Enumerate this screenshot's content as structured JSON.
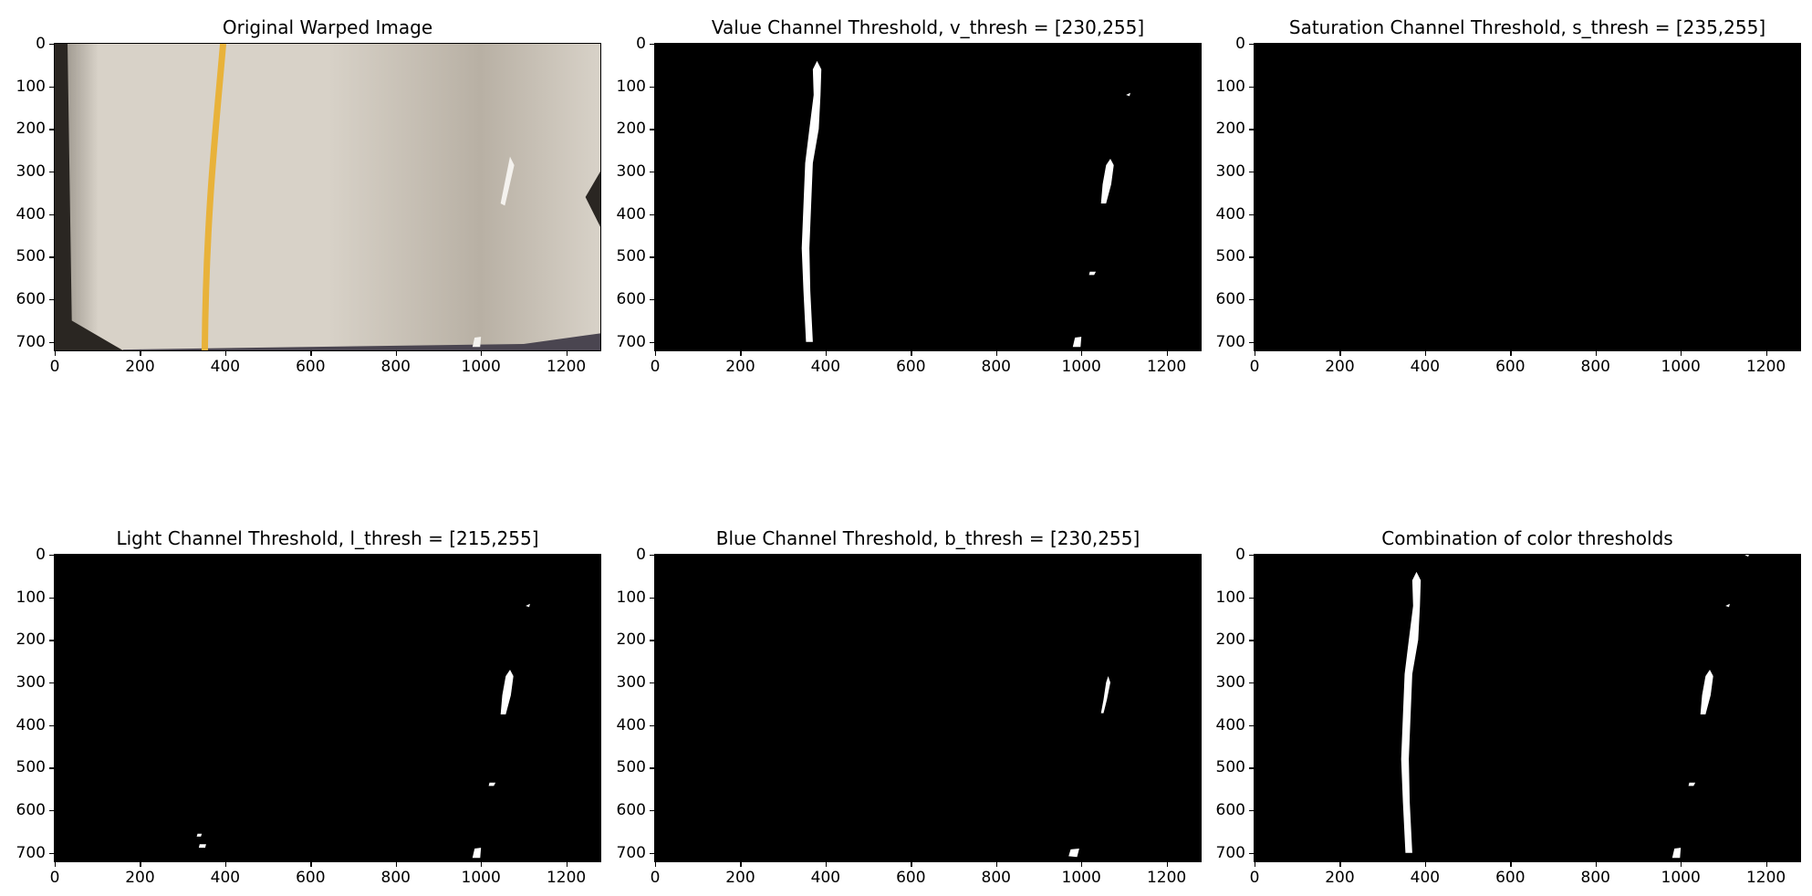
{
  "chart_data": [
    {
      "type": "image",
      "title": "Original Warped Image",
      "image": "road",
      "xlim": [
        0,
        1280
      ],
      "ylim": [
        0,
        720
      ],
      "x_ticks": [
        "0",
        "200",
        "400",
        "600",
        "800",
        "1000",
        "1200"
      ],
      "y_ticks": [
        "0",
        "100",
        "200",
        "300",
        "400",
        "500",
        "600",
        "700"
      ]
    },
    {
      "type": "image",
      "title": "Value Channel Threshold, v_thresh = [230,255]",
      "image": "binary",
      "xlim": [
        0,
        1280
      ],
      "ylim": [
        0,
        720
      ],
      "x_ticks": [
        "0",
        "200",
        "400",
        "600",
        "800",
        "1000",
        "1200"
      ],
      "y_ticks": [
        "0",
        "100",
        "200",
        "300",
        "400",
        "500",
        "600",
        "700"
      ],
      "blobs": [
        {
          "points": [
            [
              380,
              40
            ],
            [
              390,
              60
            ],
            [
              388,
              120
            ],
            [
              384,
              200
            ],
            [
              370,
              280
            ],
            [
              366,
              380
            ],
            [
              362,
              480
            ],
            [
              364,
              580
            ],
            [
              370,
              700
            ],
            [
              354,
              700
            ],
            [
              348,
              580
            ],
            [
              344,
              480
            ],
            [
              348,
              380
            ],
            [
              352,
              280
            ],
            [
              362,
              200
            ],
            [
              372,
              120
            ],
            [
              370,
              60
            ]
          ]
        },
        {
          "points": [
            [
              1068,
              270
            ],
            [
              1076,
              285
            ],
            [
              1070,
              330
            ],
            [
              1058,
              375
            ],
            [
              1046,
              375
            ],
            [
              1050,
              330
            ],
            [
              1058,
              285
            ]
          ]
        },
        {
          "points": [
            [
              1020,
              535
            ],
            [
              1034,
              535
            ],
            [
              1030,
              543
            ],
            [
              1018,
              543
            ]
          ]
        },
        {
          "points": [
            [
              985,
              690
            ],
            [
              1000,
              688
            ],
            [
              998,
              712
            ],
            [
              980,
              712
            ]
          ]
        },
        {
          "points": [
            [
              1105,
              120
            ],
            [
              1115,
              115
            ],
            [
              1113,
              123
            ]
          ]
        }
      ]
    },
    {
      "type": "image",
      "title": "Saturation Channel Threshold, s_thresh = [235,255]",
      "image": "binary",
      "xlim": [
        0,
        1280
      ],
      "ylim": [
        0,
        720
      ],
      "x_ticks": [
        "0",
        "200",
        "400",
        "600",
        "800",
        "1000",
        "1200"
      ],
      "y_ticks": [
        "0",
        "100",
        "200",
        "300",
        "400",
        "500",
        "600",
        "700"
      ],
      "blobs": []
    },
    {
      "type": "image",
      "title": "Light Channel Threshold, l_thresh = [215,255]",
      "image": "binary",
      "xlim": [
        0,
        1280
      ],
      "ylim": [
        0,
        720
      ],
      "x_ticks": [
        "0",
        "200",
        "400",
        "600",
        "800",
        "1000",
        "1200"
      ],
      "y_ticks": [
        "0",
        "100",
        "200",
        "300",
        "400",
        "500",
        "600",
        "700"
      ],
      "blobs": [
        {
          "points": [
            [
              1068,
              270
            ],
            [
              1076,
              285
            ],
            [
              1070,
              330
            ],
            [
              1058,
              375
            ],
            [
              1046,
              375
            ],
            [
              1050,
              330
            ],
            [
              1058,
              285
            ]
          ]
        },
        {
          "points": [
            [
              1020,
              535
            ],
            [
              1034,
              535
            ],
            [
              1030,
              543
            ],
            [
              1018,
              543
            ]
          ]
        },
        {
          "points": [
            [
              985,
              690
            ],
            [
              1000,
              688
            ],
            [
              998,
              712
            ],
            [
              980,
              712
            ]
          ]
        },
        {
          "points": [
            [
              1105,
              120
            ],
            [
              1115,
              115
            ],
            [
              1113,
              123
            ]
          ]
        },
        {
          "points": [
            [
              335,
              655
            ],
            [
              345,
              655
            ],
            [
              343,
              662
            ],
            [
              333,
              662
            ]
          ]
        },
        {
          "points": [
            [
              340,
              680
            ],
            [
              355,
              680
            ],
            [
              353,
              688
            ],
            [
              338,
              688
            ]
          ]
        }
      ]
    },
    {
      "type": "image",
      "title": "Blue Channel Threshold, b_thresh = [230,255]",
      "image": "binary",
      "xlim": [
        0,
        1280
      ],
      "ylim": [
        0,
        720
      ],
      "x_ticks": [
        "0",
        "200",
        "400",
        "600",
        "800",
        "1000",
        "1200"
      ],
      "y_ticks": [
        "0",
        "100",
        "200",
        "300",
        "400",
        "500",
        "600",
        "700"
      ],
      "blobs": [
        {
          "points": [
            [
              1063,
              285
            ],
            [
              1068,
              300
            ],
            [
              1060,
              340
            ],
            [
              1052,
              372
            ],
            [
              1046,
              372
            ],
            [
              1052,
              340
            ],
            [
              1058,
              300
            ]
          ]
        },
        {
          "points": [
            [
              975,
              692
            ],
            [
              995,
              690
            ],
            [
              990,
              710
            ],
            [
              970,
              708
            ]
          ]
        }
      ]
    },
    {
      "type": "image",
      "title": "Combination of color thresholds",
      "image": "binary",
      "xlim": [
        0,
        1280
      ],
      "ylim": [
        0,
        720
      ],
      "x_ticks": [
        "0",
        "200",
        "400",
        "600",
        "800",
        "1000",
        "1200"
      ],
      "y_ticks": [
        "0",
        "100",
        "200",
        "300",
        "400",
        "500",
        "600",
        "700"
      ],
      "blobs": [
        {
          "points": [
            [
              380,
              40
            ],
            [
              390,
              60
            ],
            [
              388,
              120
            ],
            [
              384,
              200
            ],
            [
              370,
              280
            ],
            [
              366,
              380
            ],
            [
              362,
              480
            ],
            [
              364,
              580
            ],
            [
              370,
              700
            ],
            [
              354,
              700
            ],
            [
              348,
              580
            ],
            [
              344,
              480
            ],
            [
              348,
              380
            ],
            [
              352,
              280
            ],
            [
              362,
              200
            ],
            [
              372,
              120
            ],
            [
              370,
              60
            ]
          ]
        },
        {
          "points": [
            [
              1068,
              270
            ],
            [
              1076,
              285
            ],
            [
              1070,
              330
            ],
            [
              1058,
              375
            ],
            [
              1046,
              375
            ],
            [
              1050,
              330
            ],
            [
              1058,
              285
            ]
          ]
        },
        {
          "points": [
            [
              1020,
              535
            ],
            [
              1034,
              535
            ],
            [
              1030,
              543
            ],
            [
              1018,
              543
            ]
          ]
        },
        {
          "points": [
            [
              985,
              690
            ],
            [
              1000,
              688
            ],
            [
              998,
              712
            ],
            [
              980,
              712
            ]
          ]
        },
        {
          "points": [
            [
              1105,
              120
            ],
            [
              1115,
              115
            ],
            [
              1113,
              123
            ]
          ]
        },
        {
          "points": [
            [
              1150,
              0
            ],
            [
              1160,
              0
            ],
            [
              1158,
              5
            ]
          ]
        }
      ]
    }
  ],
  "colors": {
    "axes_bg": "#000000",
    "blob": "#ffffff",
    "road_light": "#d8d2c8",
    "road_mid": "#b8b0a4",
    "road_dark": "#8d877e",
    "yellow_line": "#e8b23a"
  }
}
